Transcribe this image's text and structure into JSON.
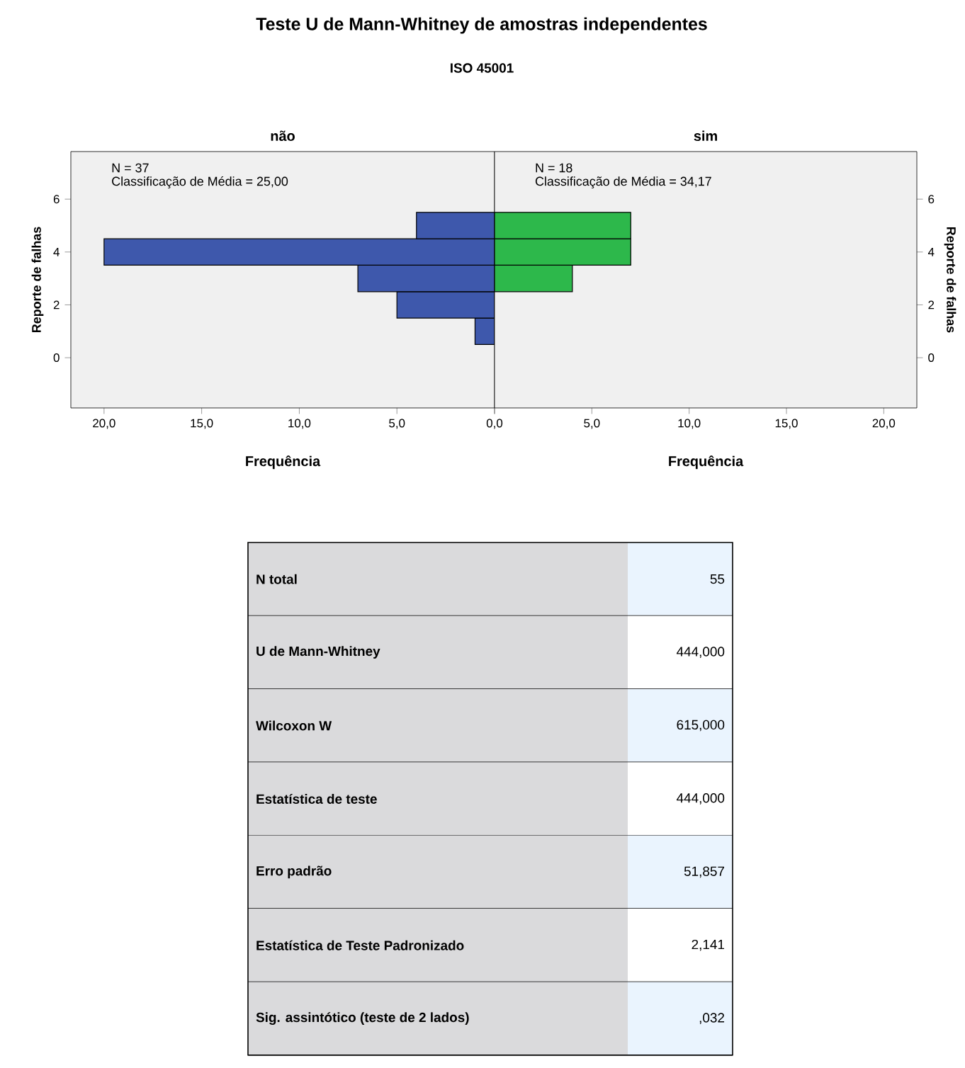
{
  "chart_data": [
    {
      "type": "histogram",
      "orientation": "horizontal",
      "title": "não",
      "xlabel": "Frequência",
      "ylabel": "Reporte de falhas",
      "color": "#3e58ac",
      "bins": [
        0.5,
        1.5,
        2.5,
        3.5,
        4.5,
        5.5
      ],
      "values": [
        1,
        5,
        7,
        20,
        4
      ],
      "xlim": [
        21.7,
        0
      ],
      "ylim": [
        -1.9,
        7.8
      ],
      "xticks": [
        {
          "value": 20,
          "label": "20,0"
        },
        {
          "value": 15,
          "label": "15,0"
        },
        {
          "value": 10,
          "label": "10,0"
        },
        {
          "value": 5,
          "label": "5,0"
        },
        {
          "value": 0,
          "label": null
        }
      ],
      "yticks": [
        0,
        2,
        4,
        6
      ],
      "annotations": [
        "Teste U de Mann-Whitney de amostras independentes",
        "ISO 45001",
        "N = 37",
        "Classificação de Média = 25,00"
      ]
    },
    {
      "type": "histogram",
      "orientation": "horizontal",
      "title": "sim",
      "xlabel": "Frequência",
      "ylabel": "Reporte de falhas",
      "color": "#2db84b",
      "bins": [
        0.5,
        1.5,
        2.5,
        3.5,
        4.5,
        5.5
      ],
      "values": [
        0,
        0,
        4,
        7,
        7
      ],
      "xlim": [
        0,
        21.7
      ],
      "ylim": [
        -1.9,
        7.8
      ],
      "xticks": [
        {
          "value": 0,
          "label": "0,0"
        },
        {
          "value": 5,
          "label": "5,0"
        },
        {
          "value": 10,
          "label": "10,0"
        },
        {
          "value": 15,
          "label": "15,0"
        },
        {
          "value": 20,
          "label": "20,0"
        }
      ],
      "yticks": [
        0,
        2,
        4,
        6
      ],
      "annotations": [
        "N = 18",
        "Classificação de Média = 34,17"
      ]
    },
    {
      "type": "other",
      "annotations": [
        "N total",
        "55",
        "U de Mann-Whitney",
        "444,000",
        "Wilcoxon W",
        "615,000",
        "Estatística de teste",
        "444,000",
        "Erro padrão",
        "51,857",
        "Estatística de Teste Padronizado",
        "2,141",
        "Sig. assintótico (teste de 2 lados)",
        ",032"
      ]
    }
  ]
}
